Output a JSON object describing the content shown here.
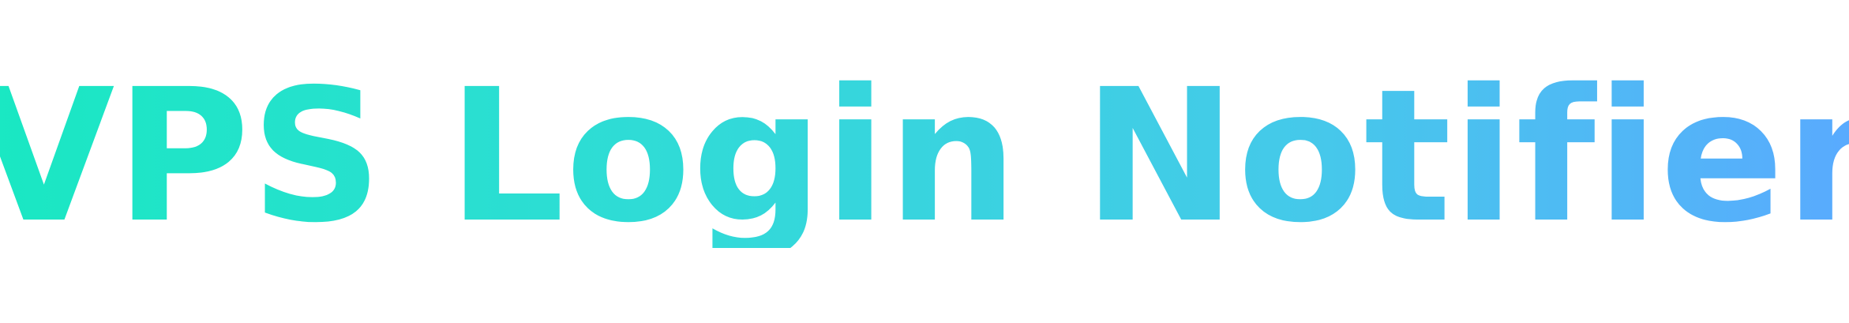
{
  "logo": {
    "title": "VPS Login Notifier",
    "gradient_start": "#19e8c2",
    "gradient_end": "#5aa9ff"
  }
}
